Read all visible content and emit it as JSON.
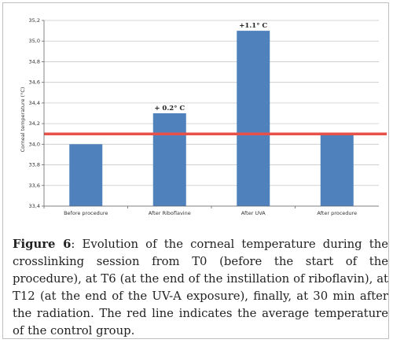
{
  "figure": {
    "label": "Figure 6",
    "caption": ": Evolution of the corneal temperature during the crosslinking session from T0 (before the start of the procedure), at T6 (at the end of the instillation of riboflavin), at T12 (at the end of the UV-A exposure), finally, at 30 min after the radiation. The red line indicates the average temperature of the control group."
  },
  "chart_data": {
    "type": "bar",
    "title": "",
    "xlabel": "",
    "ylabel": "Corneal temperature (°C)",
    "categories": [
      "Before procedure",
      "After Riboflavine",
      "After UVA",
      "After procedure"
    ],
    "values": [
      34.0,
      34.3,
      35.1,
      34.1
    ],
    "ylim": [
      33.4,
      35.2
    ],
    "yticks": [
      "33,4",
      "33,6",
      "33,8",
      "34,0",
      "34,2",
      "34,4",
      "34,6",
      "34,8",
      "35,0",
      "35,2"
    ],
    "annotations": [
      {
        "category": "After Riboflavine",
        "text": "+ 0.2° C"
      },
      {
        "category": "After UVA",
        "text": "+1.1° C"
      }
    ],
    "reference_line": {
      "value": 34.1,
      "color": "#e8504a"
    },
    "bar_color": "#4f81bd",
    "grid": true,
    "legend": "none"
  }
}
